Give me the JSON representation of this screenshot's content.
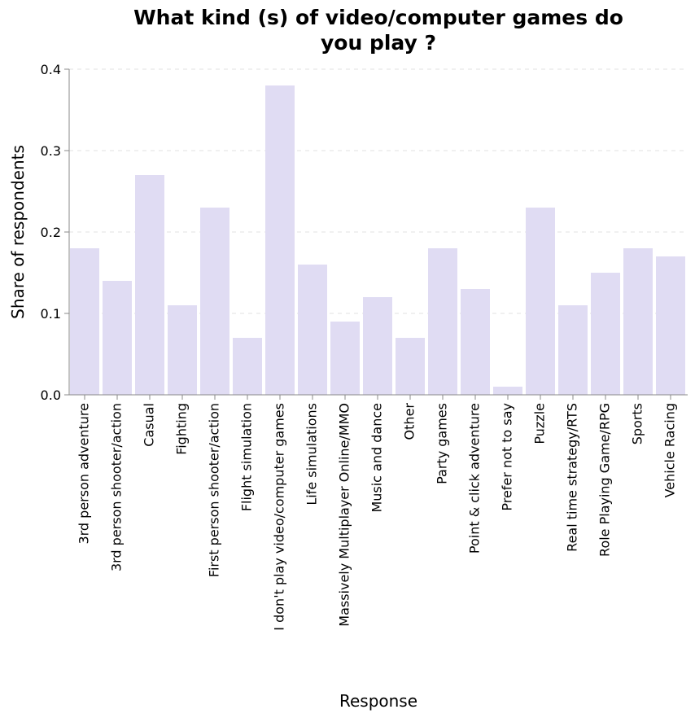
{
  "chart_data": {
    "type": "bar",
    "title": [
      "What kind (s) of video/computer games do",
      "you play ?"
    ],
    "xlabel": "Response",
    "ylabel": "Share of respondents",
    "ylim": [
      0,
      0.4
    ],
    "yticks": [
      "0.0",
      "0.1",
      "0.2",
      "0.3",
      "0.4"
    ],
    "grid": true,
    "bar_color": "#e0dcf3",
    "categories": [
      "3rd person adventure",
      "3rd person shooter/action",
      "Casual",
      "Fighting",
      "First person shooter/action",
      "Flight simulation",
      "I don't play video/computer games",
      "Life simulations",
      "Massively Multiplayer Online/MMO",
      "Music and dance",
      "Other",
      "Party games",
      "Point & click adventure",
      "Prefer not to say",
      "Puzzle",
      "Real time strategy/RTS",
      "Role Playing Game/RPG",
      "Sports",
      "Vehicle Racing"
    ],
    "values": [
      0.18,
      0.14,
      0.27,
      0.11,
      0.23,
      0.07,
      0.38,
      0.16,
      0.09,
      0.12,
      0.07,
      0.18,
      0.13,
      0.01,
      0.23,
      0.11,
      0.15,
      0.18,
      0.17
    ]
  }
}
